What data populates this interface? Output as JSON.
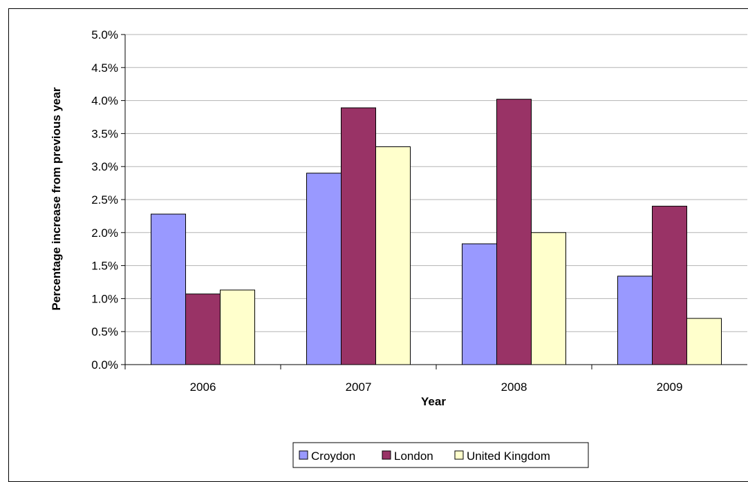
{
  "chart_data": {
    "type": "bar",
    "title": "",
    "xlabel": "Year",
    "ylabel": "Percentage increase from previous year",
    "categories": [
      "2006",
      "2007",
      "2008",
      "2009"
    ],
    "ylim": [
      0,
      5.0
    ],
    "ytick_step": 0.5,
    "ytick_labels": [
      "0.0%",
      "0.5%",
      "1.0%",
      "1.5%",
      "2.0%",
      "2.5%",
      "3.0%",
      "3.5%",
      "4.0%",
      "4.5%",
      "5.0%"
    ],
    "grid": true,
    "legend_position": "bottom",
    "series": [
      {
        "name": "Croydon",
        "color": "#9999ff",
        "values": [
          2.28,
          2.9,
          1.83,
          1.34
        ]
      },
      {
        "name": "London",
        "color": "#993366",
        "values": [
          1.07,
          3.89,
          4.02,
          2.4
        ]
      },
      {
        "name": "United Kingdom",
        "color": "#ffffcc",
        "values": [
          1.13,
          3.3,
          2.0,
          0.7
        ]
      }
    ]
  }
}
